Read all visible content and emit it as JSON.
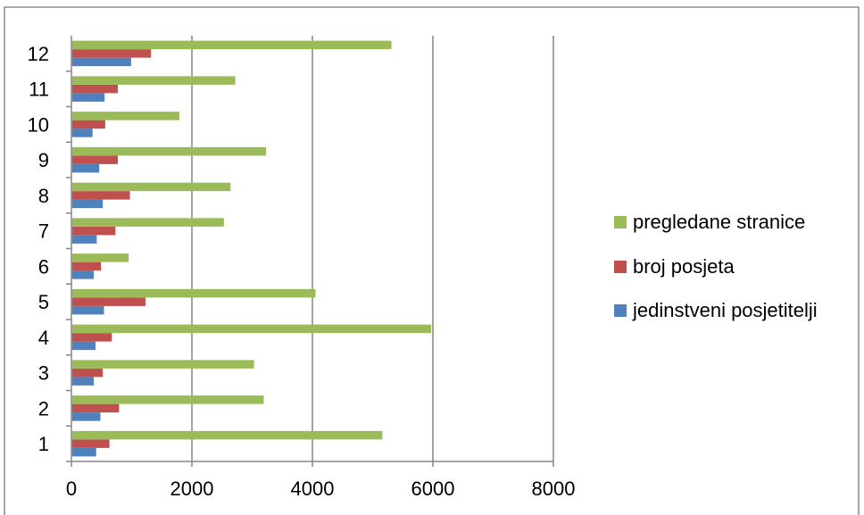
{
  "chart_data": {
    "type": "bar",
    "orientation": "horizontal",
    "categories": [
      "1",
      "2",
      "3",
      "4",
      "5",
      "6",
      "7",
      "8",
      "9",
      "10",
      "11",
      "12"
    ],
    "series": [
      {
        "name": "jedinstveni posjetitelji",
        "color": "#4F81BD",
        "values": [
          400,
          470,
          360,
          390,
          530,
          360,
          410,
          510,
          450,
          340,
          540,
          980
        ]
      },
      {
        "name": "broj posjeta",
        "color": "#C0504D",
        "values": [
          620,
          780,
          510,
          660,
          1220,
          480,
          720,
          960,
          760,
          550,
          760,
          1310
        ]
      },
      {
        "name": "pregledane stranice",
        "color": "#9BBB59",
        "values": [
          5150,
          3180,
          3020,
          5960,
          4040,
          940,
          2520,
          2630,
          3220,
          1780,
          2710,
          5300
        ]
      }
    ],
    "xlim": [
      0,
      8000
    ],
    "x_ticks": [
      "0",
      "2000",
      "4000",
      "6000",
      "8000"
    ],
    "grid": "vertical major gridlines",
    "legend_position": "right",
    "legend_order": [
      "pregledane stranice",
      "broj posjeta",
      "jedinstveni posjetitelji"
    ],
    "title": "",
    "xlabel": "",
    "ylabel": ""
  }
}
